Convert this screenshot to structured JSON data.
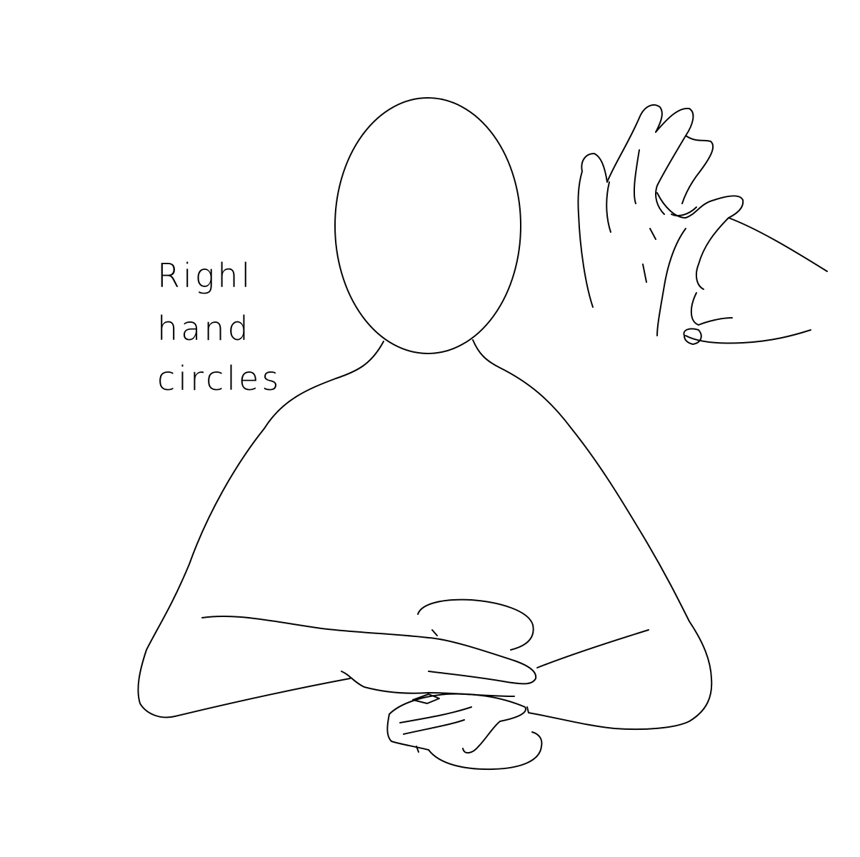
{
  "caption": {
    "line1": "Righl",
    "line2": "hand",
    "line3": "circles"
  },
  "colors": {
    "background": "#ffffff",
    "ink": "#000000"
  }
}
